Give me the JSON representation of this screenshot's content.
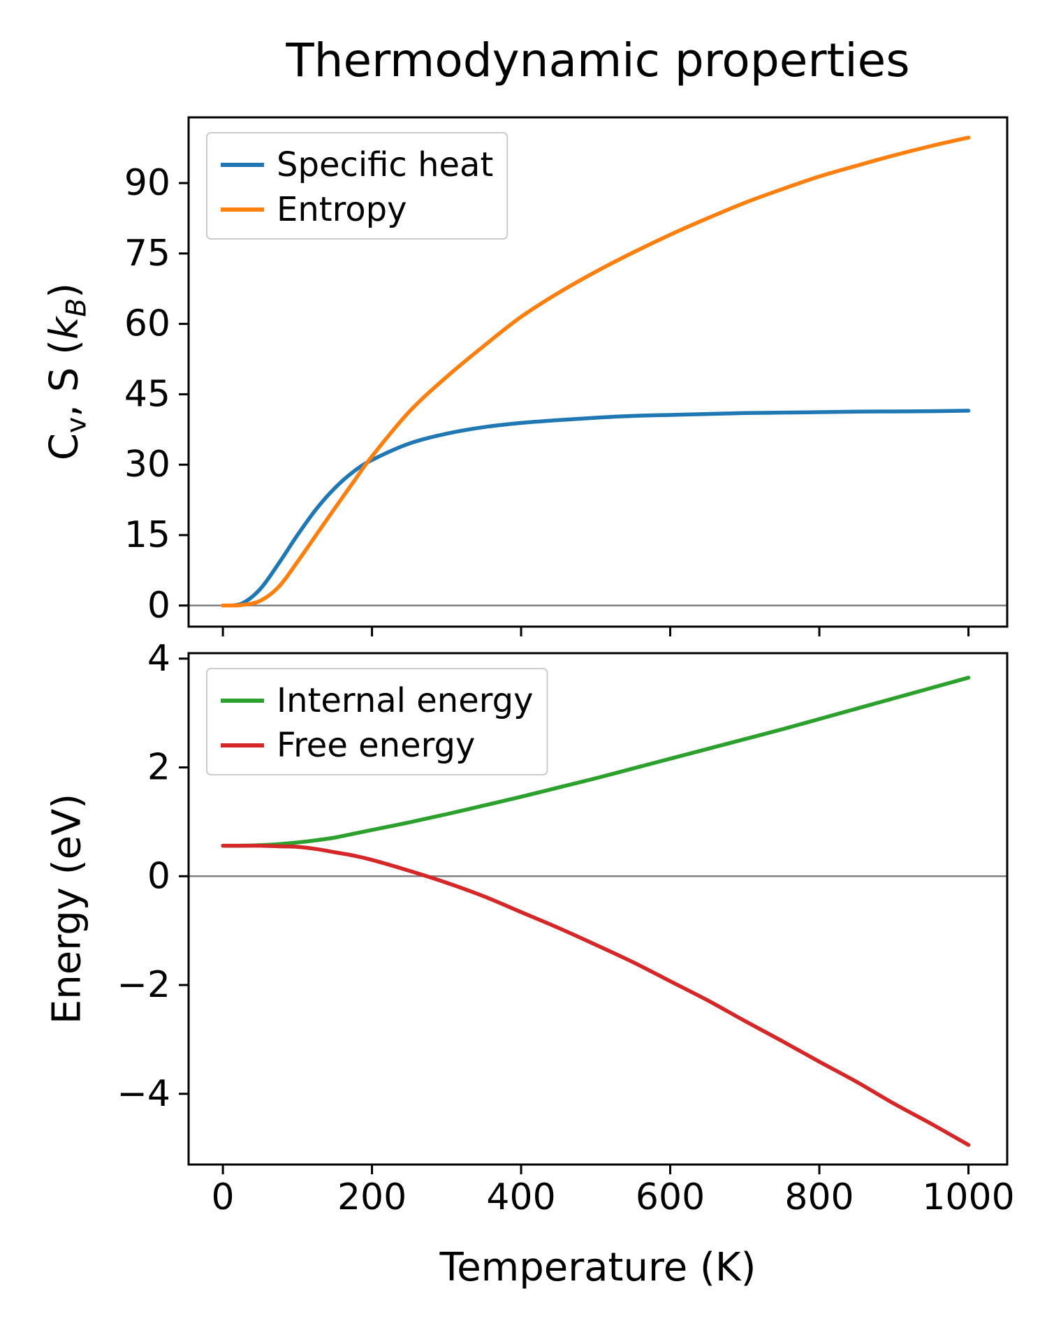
{
  "title": "Thermodynamic properties",
  "colors": {
    "specific_heat": "#1f77b4",
    "entropy": "#ff7f0e",
    "internal_energy": "#2ca02c",
    "free_energy": "#d62728",
    "zero_line": "#808080",
    "axes": "#000000",
    "legend_border": "#cccccc"
  },
  "chart_data": [
    {
      "type": "line",
      "ylabel": "Cv, S (kB)",
      "ylabel_parts": [
        {
          "text": "C"
        },
        {
          "text": "v",
          "sub": true
        },
        {
          "text": ", S ("
        },
        {
          "text": "k",
          "italic": true
        },
        {
          "text": "B",
          "sub": true,
          "italic": true
        },
        {
          "text": ")"
        }
      ],
      "xlabel": "",
      "xlim": [
        -46,
        1052
      ],
      "ylim": [
        -4.5,
        104
      ],
      "xticks": [
        0,
        200,
        400,
        600,
        800,
        1000
      ],
      "yticks": [
        0,
        15,
        30,
        45,
        60,
        75,
        90
      ],
      "show_x_tick_labels": false,
      "zero_line": true,
      "grid": false,
      "legend_position": "upper-left",
      "x": [
        0,
        25,
        50,
        75,
        100,
        125,
        150,
        175,
        200,
        250,
        300,
        350,
        400,
        450,
        500,
        550,
        600,
        650,
        700,
        750,
        800,
        850,
        900,
        950,
        1000
      ],
      "series": [
        {
          "name": "Specific heat",
          "color": "#1f77b4",
          "values": [
            0,
            0.4,
            3.5,
            9,
            15,
            20.5,
            25,
            28.5,
            31,
            34.5,
            36.6,
            38,
            38.9,
            39.5,
            40,
            40.4,
            40.6,
            40.8,
            41,
            41.1,
            41.2,
            41.3,
            41.35,
            41.4,
            41.5
          ]
        },
        {
          "name": "Entropy",
          "color": "#ff7f0e",
          "values": [
            0,
            0.1,
            1,
            4,
            9.3,
            15,
            20.7,
            26.3,
            31.8,
            41.3,
            48.7,
            55.3,
            61.5,
            66.6,
            71.1,
            75.2,
            79,
            82.5,
            85.8,
            88.7,
            91.4,
            93.7,
            95.9,
            97.9,
            99.7
          ]
        }
      ]
    },
    {
      "type": "line",
      "ylabel": "Energy (eV)",
      "xlabel": "Temperature (K)",
      "xlim": [
        -46,
        1052
      ],
      "ylim": [
        -5.3,
        4.1
      ],
      "xticks": [
        0,
        200,
        400,
        600,
        800,
        1000
      ],
      "yticks": [
        -4,
        -2,
        0,
        2,
        4
      ],
      "show_x_tick_labels": true,
      "zero_line": true,
      "grid": false,
      "legend_position": "upper-left",
      "x": [
        0,
        25,
        50,
        75,
        100,
        125,
        150,
        175,
        200,
        250,
        300,
        350,
        400,
        450,
        500,
        550,
        600,
        650,
        700,
        750,
        800,
        850,
        900,
        950,
        1000
      ],
      "series": [
        {
          "name": "Internal energy",
          "color": "#2ca02c",
          "values": [
            0.56,
            0.56,
            0.57,
            0.59,
            0.62,
            0.66,
            0.71,
            0.78,
            0.85,
            0.99,
            1.14,
            1.3,
            1.46,
            1.63,
            1.8,
            1.98,
            2.16,
            2.34,
            2.52,
            2.7,
            2.89,
            3.08,
            3.27,
            3.46,
            3.65
          ]
        },
        {
          "name": "Free energy",
          "color": "#d62728",
          "values": [
            0.56,
            0.56,
            0.56,
            0.55,
            0.54,
            0.5,
            0.44,
            0.38,
            0.3,
            0.1,
            -0.12,
            -0.37,
            -0.66,
            -0.95,
            -1.26,
            -1.58,
            -1.93,
            -2.28,
            -2.66,
            -3.03,
            -3.41,
            -3.78,
            -4.18,
            -4.55,
            -4.94
          ]
        }
      ]
    }
  ]
}
